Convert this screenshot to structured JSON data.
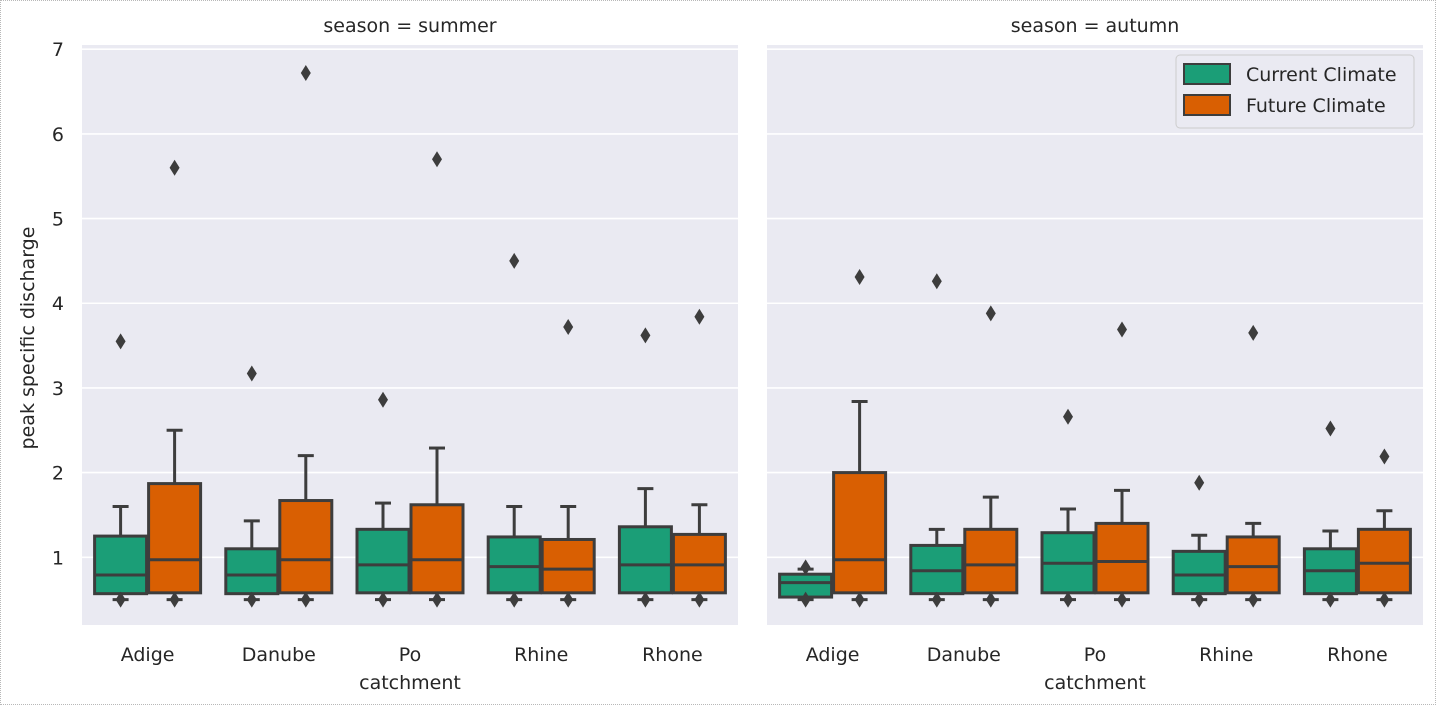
{
  "chart_data": {
    "type": "box",
    "ylabel": "peak specific discharge",
    "xlabel": "catchment",
    "ylim": [
      0.2,
      7.05
    ],
    "yticks": [
      1,
      2,
      3,
      4,
      5,
      6,
      7
    ],
    "grid": true,
    "legend_placement": "top-right (right panel)",
    "categories": [
      "Adige",
      "Danube",
      "Po",
      "Rhine",
      "Rhone"
    ],
    "series_names": [
      "Current Climate",
      "Future Climate"
    ],
    "colors": {
      "Current Climate": "#1b9e77",
      "Future Climate": "#d95f02"
    },
    "panels": [
      {
        "title": "season = summer",
        "boxes": [
          {
            "cat": "Adige",
            "series": "Current Climate",
            "whislo": 0.5,
            "q1": 0.57,
            "med": 0.79,
            "q3": 1.25,
            "whishi": 1.6,
            "fliers": [
              3.55
            ]
          },
          {
            "cat": "Adige",
            "series": "Future Climate",
            "whislo": 0.5,
            "q1": 0.58,
            "med": 0.97,
            "q3": 1.87,
            "whishi": 2.5,
            "fliers": [
              5.6
            ]
          },
          {
            "cat": "Danube",
            "series": "Current Climate",
            "whislo": 0.5,
            "q1": 0.57,
            "med": 0.79,
            "q3": 1.1,
            "whishi": 1.43,
            "fliers": [
              3.17
            ]
          },
          {
            "cat": "Danube",
            "series": "Future Climate",
            "whislo": 0.5,
            "q1": 0.58,
            "med": 0.97,
            "q3": 1.67,
            "whishi": 2.2,
            "fliers": [
              6.72
            ]
          },
          {
            "cat": "Po",
            "series": "Current Climate",
            "whislo": 0.5,
            "q1": 0.58,
            "med": 0.91,
            "q3": 1.33,
            "whishi": 1.64,
            "fliers": [
              2.86
            ]
          },
          {
            "cat": "Po",
            "series": "Future Climate",
            "whislo": 0.5,
            "q1": 0.58,
            "med": 0.97,
            "q3": 1.62,
            "whishi": 2.29,
            "fliers": [
              5.7
            ]
          },
          {
            "cat": "Rhine",
            "series": "Current Climate",
            "whislo": 0.5,
            "q1": 0.58,
            "med": 0.89,
            "q3": 1.24,
            "whishi": 1.6,
            "fliers": [
              4.5
            ]
          },
          {
            "cat": "Rhine",
            "series": "Future Climate",
            "whislo": 0.5,
            "q1": 0.58,
            "med": 0.86,
            "q3": 1.21,
            "whishi": 1.6,
            "fliers": [
              3.72
            ]
          },
          {
            "cat": "Rhone",
            "series": "Current Climate",
            "whislo": 0.5,
            "q1": 0.58,
            "med": 0.91,
            "q3": 1.36,
            "whishi": 1.81,
            "fliers": [
              3.62
            ]
          },
          {
            "cat": "Rhone",
            "series": "Future Climate",
            "whislo": 0.5,
            "q1": 0.58,
            "med": 0.91,
            "q3": 1.27,
            "whishi": 1.62,
            "fliers": [
              3.84
            ]
          }
        ]
      },
      {
        "title": "season = autumn",
        "boxes": [
          {
            "cat": "Adige",
            "series": "Current Climate",
            "whislo": 0.5,
            "q1": 0.53,
            "med": 0.7,
            "q3": 0.8,
            "whishi": 0.86,
            "fliers": [
              0.88
            ]
          },
          {
            "cat": "Adige",
            "series": "Future Climate",
            "whislo": 0.5,
            "q1": 0.58,
            "med": 0.97,
            "q3": 2.0,
            "whishi": 2.84,
            "fliers": [
              4.31
            ]
          },
          {
            "cat": "Danube",
            "series": "Current Climate",
            "whislo": 0.5,
            "q1": 0.57,
            "med": 0.84,
            "q3": 1.14,
            "whishi": 1.33,
            "fliers": [
              4.26
            ]
          },
          {
            "cat": "Danube",
            "series": "Future Climate",
            "whislo": 0.5,
            "q1": 0.58,
            "med": 0.91,
            "q3": 1.33,
            "whishi": 1.71,
            "fliers": [
              3.88
            ]
          },
          {
            "cat": "Po",
            "series": "Current Climate",
            "whislo": 0.5,
            "q1": 0.58,
            "med": 0.93,
            "q3": 1.29,
            "whishi": 1.57,
            "fliers": [
              2.66
            ]
          },
          {
            "cat": "Po",
            "series": "Future Climate",
            "whislo": 0.5,
            "q1": 0.58,
            "med": 0.95,
            "q3": 1.4,
            "whishi": 1.79,
            "fliers": [
              3.69
            ]
          },
          {
            "cat": "Rhine",
            "series": "Current Climate",
            "whislo": 0.5,
            "q1": 0.57,
            "med": 0.79,
            "q3": 1.07,
            "whishi": 1.26,
            "fliers": [
              1.88
            ]
          },
          {
            "cat": "Rhine",
            "series": "Future Climate",
            "whislo": 0.5,
            "q1": 0.58,
            "med": 0.89,
            "q3": 1.24,
            "whishi": 1.4,
            "fliers": [
              3.65
            ]
          },
          {
            "cat": "Rhone",
            "series": "Current Climate",
            "whislo": 0.5,
            "q1": 0.57,
            "med": 0.84,
            "q3": 1.1,
            "whishi": 1.31,
            "fliers": [
              2.52
            ]
          },
          {
            "cat": "Rhone",
            "series": "Future Climate",
            "whislo": 0.5,
            "q1": 0.58,
            "med": 0.93,
            "q3": 1.33,
            "whishi": 1.55,
            "fliers": [
              2.19
            ]
          }
        ]
      }
    ]
  }
}
